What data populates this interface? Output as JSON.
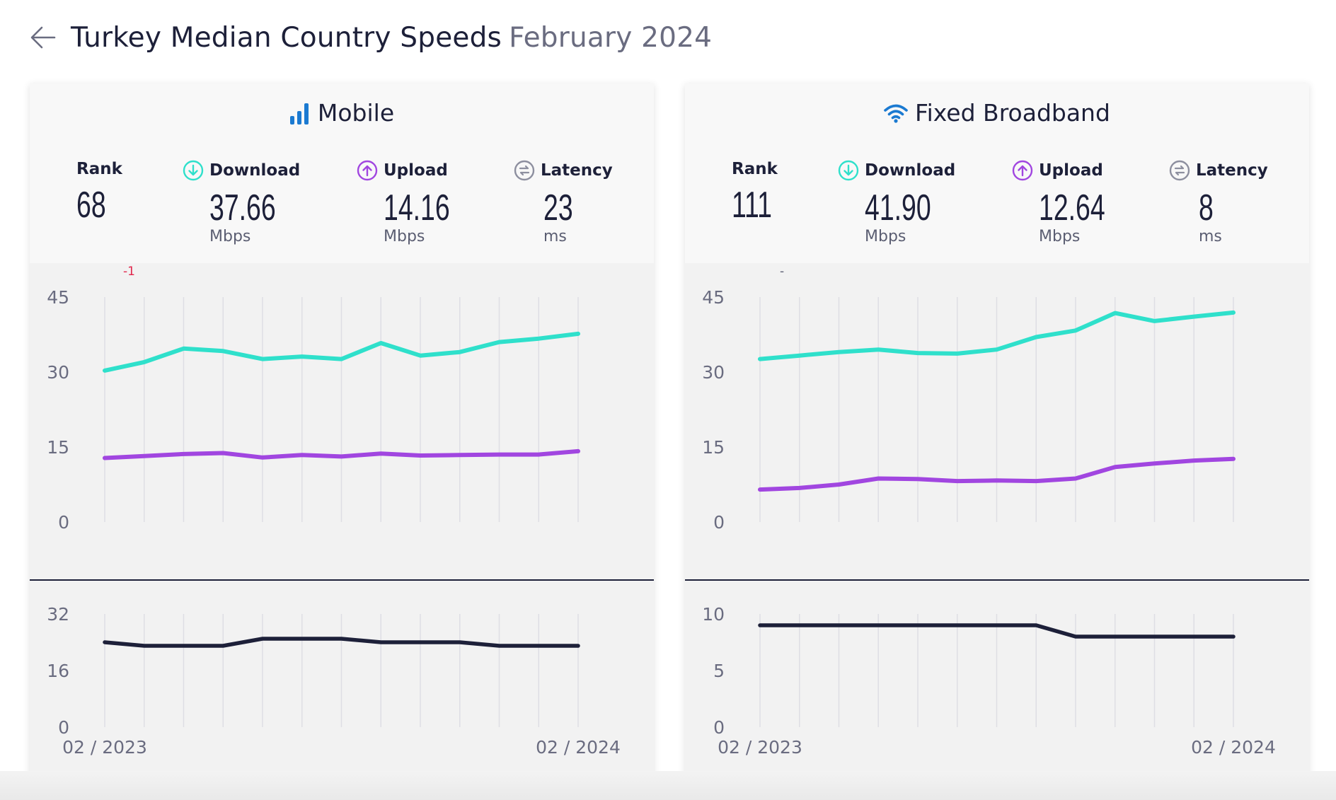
{
  "header": {
    "title": "Turkey Median Country Speeds",
    "date": "February 2024"
  },
  "colors": {
    "download": "#2fe0cb",
    "upload": "#a146e0",
    "latency": "#1d2039",
    "accent_blue": "#1b7ad1",
    "rank_change": "#e0264b",
    "grid": "#dedee4",
    "axis_text": "#6a6c80"
  },
  "panels": [
    {
      "title": "Mobile",
      "icon": "signal-bars-icon",
      "stats": {
        "rank_label": "Rank",
        "rank": "68",
        "rank_change": "-1",
        "download_label": "Download",
        "download": "37.66",
        "download_unit": "Mbps",
        "upload_label": "Upload",
        "upload": "14.16",
        "upload_unit": "Mbps",
        "latency_label": "Latency",
        "latency": "23",
        "latency_unit": "ms"
      },
      "x_start": "02 / 2023",
      "x_end": "02 / 2024"
    },
    {
      "title": "Fixed Broadband",
      "icon": "wifi-icon",
      "stats": {
        "rank_label": "Rank",
        "rank": "111",
        "rank_change": "-",
        "download_label": "Download",
        "download": "41.90",
        "download_unit": "Mbps",
        "upload_label": "Upload",
        "upload": "12.64",
        "upload_unit": "Mbps",
        "latency_label": "Latency",
        "latency": "8",
        "latency_unit": "ms"
      },
      "x_start": "02 / 2023",
      "x_end": "02 / 2024"
    }
  ],
  "chart_data": [
    {
      "type": "line",
      "panel": "Mobile",
      "x": [
        "02 / 2023",
        "",
        "",
        "",
        "",
        "",
        "",
        "",
        "",
        "",
        "",
        "",
        "02 / 2024"
      ],
      "ylim": [
        0,
        45
      ],
      "yticks": [
        0,
        15,
        30,
        45
      ],
      "series": [
        {
          "name": "Download",
          "values": [
            30.3,
            32.0,
            34.7,
            34.2,
            32.6,
            33.1,
            32.6,
            35.8,
            33.3,
            34.0,
            36.0,
            36.7,
            37.66
          ]
        },
        {
          "name": "Upload",
          "values": [
            12.8,
            13.2,
            13.6,
            13.8,
            12.9,
            13.4,
            13.1,
            13.7,
            13.3,
            13.4,
            13.5,
            13.5,
            14.16
          ]
        }
      ],
      "latency": {
        "name": "Latency",
        "ylim": [
          0,
          32
        ],
        "yticks": [
          0,
          16,
          32
        ],
        "values": [
          24,
          23,
          23,
          23,
          25,
          25,
          25,
          24,
          24,
          24,
          23,
          23,
          23
        ]
      }
    },
    {
      "type": "line",
      "panel": "Fixed Broadband",
      "x": [
        "02 / 2023",
        "",
        "",
        "",
        "",
        "",
        "",
        "",
        "",
        "",
        "",
        "",
        "02 / 2024"
      ],
      "ylim": [
        0,
        45
      ],
      "yticks": [
        0,
        15,
        30,
        45
      ],
      "series": [
        {
          "name": "Download",
          "values": [
            32.6,
            33.3,
            34.0,
            34.5,
            33.8,
            33.7,
            34.5,
            37.0,
            38.3,
            41.8,
            40.2,
            41.1,
            41.9
          ]
        },
        {
          "name": "Upload",
          "values": [
            6.5,
            6.8,
            7.5,
            8.7,
            8.6,
            8.2,
            8.3,
            8.2,
            8.7,
            11.0,
            11.7,
            12.3,
            12.64
          ]
        }
      ],
      "latency": {
        "name": "Latency",
        "ylim": [
          0,
          10
        ],
        "yticks": [
          0,
          5,
          10
        ],
        "values": [
          9,
          9,
          9,
          9,
          9,
          9,
          9,
          9,
          8,
          8,
          8,
          8,
          8
        ]
      }
    }
  ]
}
